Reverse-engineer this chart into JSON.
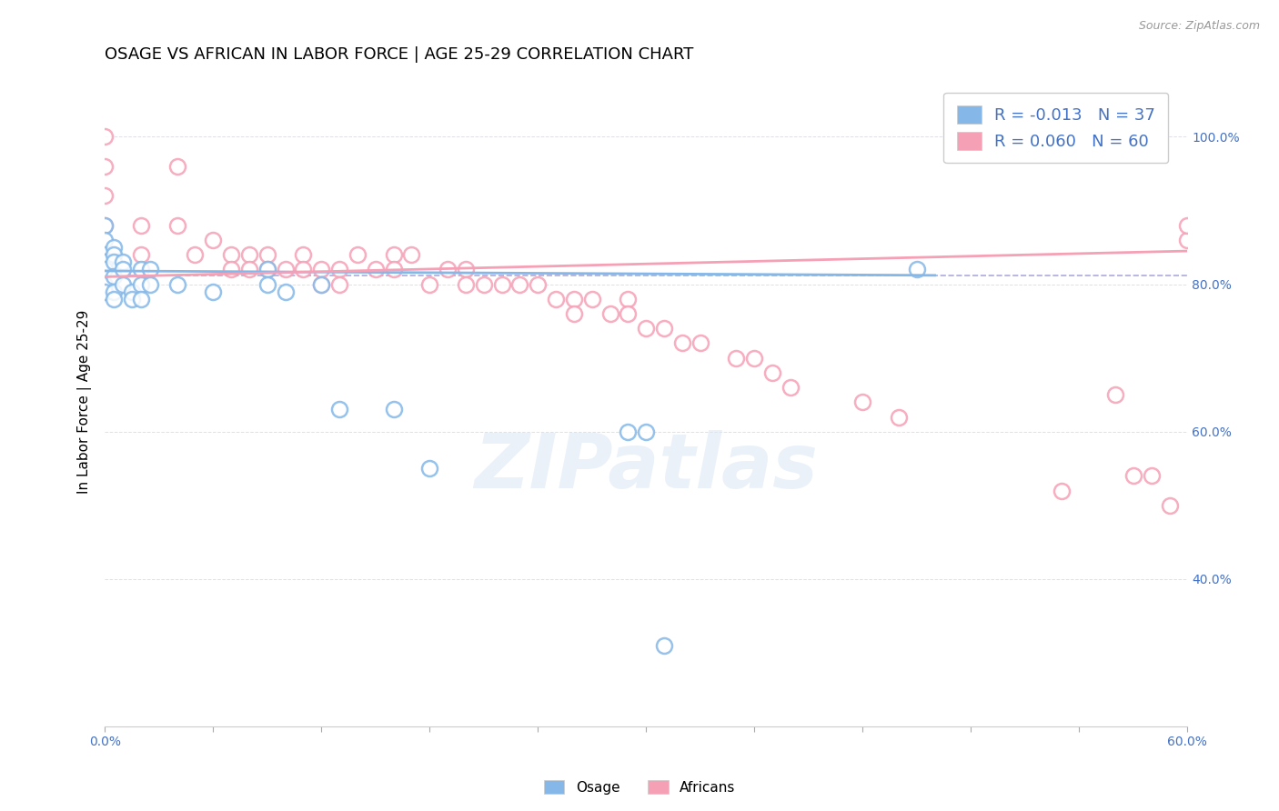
{
  "title": "OSAGE VS AFRICAN IN LABOR FORCE | AGE 25-29 CORRELATION CHART",
  "source_text": "Source: ZipAtlas.com",
  "ylabel": "In Labor Force | Age 25-29",
  "xlim": [
    0.0,
    0.6
  ],
  "ylim": [
    0.2,
    1.08
  ],
  "xticks": [
    0.0,
    0.06,
    0.12,
    0.18,
    0.24,
    0.3,
    0.36,
    0.42,
    0.48,
    0.54,
    0.6
  ],
  "xtick_labels": [
    "0.0%",
    "",
    "",
    "",
    "",
    "",
    "",
    "",
    "",
    "",
    "60.0%"
  ],
  "osage_R": -0.013,
  "osage_N": 37,
  "african_R": 0.06,
  "african_N": 60,
  "osage_color": "#85b8e8",
  "african_color": "#f5a0b5",
  "osage_points_x": [
    0.0,
    0.0,
    0.0,
    0.0,
    0.0,
    0.0,
    0.0,
    0.0,
    0.005,
    0.005,
    0.005,
    0.005,
    0.005,
    0.005,
    0.01,
    0.01,
    0.01,
    0.015,
    0.015,
    0.02,
    0.02,
    0.02,
    0.025,
    0.025,
    0.04,
    0.06,
    0.09,
    0.09,
    0.1,
    0.12,
    0.13,
    0.16,
    0.18,
    0.45,
    0.3,
    0.29,
    0.31
  ],
  "osage_points_y": [
    0.88,
    0.86,
    0.84,
    0.83,
    0.83,
    0.82,
    0.8,
    0.79,
    0.85,
    0.84,
    0.83,
    0.81,
    0.79,
    0.78,
    0.83,
    0.82,
    0.8,
    0.79,
    0.78,
    0.82,
    0.8,
    0.78,
    0.82,
    0.8,
    0.8,
    0.79,
    0.82,
    0.8,
    0.79,
    0.8,
    0.63,
    0.63,
    0.55,
    0.82,
    0.6,
    0.6,
    0.31
  ],
  "african_points_x": [
    0.0,
    0.0,
    0.0,
    0.0,
    0.02,
    0.02,
    0.04,
    0.04,
    0.05,
    0.06,
    0.07,
    0.07,
    0.08,
    0.08,
    0.09,
    0.09,
    0.1,
    0.11,
    0.11,
    0.12,
    0.12,
    0.13,
    0.13,
    0.14,
    0.15,
    0.16,
    0.16,
    0.17,
    0.18,
    0.19,
    0.2,
    0.2,
    0.21,
    0.22,
    0.23,
    0.24,
    0.25,
    0.26,
    0.26,
    0.27,
    0.28,
    0.29,
    0.29,
    0.3,
    0.31,
    0.32,
    0.33,
    0.35,
    0.36,
    0.37,
    0.38,
    0.42,
    0.44,
    0.53,
    0.56,
    0.57,
    0.59,
    0.6,
    0.58,
    0.6
  ],
  "african_points_y": [
    1.0,
    0.96,
    0.92,
    0.88,
    0.88,
    0.84,
    0.96,
    0.88,
    0.84,
    0.86,
    0.84,
    0.82,
    0.84,
    0.82,
    0.84,
    0.82,
    0.82,
    0.84,
    0.82,
    0.82,
    0.8,
    0.82,
    0.8,
    0.84,
    0.82,
    0.84,
    0.82,
    0.84,
    0.8,
    0.82,
    0.82,
    0.8,
    0.8,
    0.8,
    0.8,
    0.8,
    0.78,
    0.78,
    0.76,
    0.78,
    0.76,
    0.78,
    0.76,
    0.74,
    0.74,
    0.72,
    0.72,
    0.7,
    0.7,
    0.68,
    0.66,
    0.64,
    0.62,
    0.52,
    0.65,
    0.54,
    0.5,
    0.86,
    0.54,
    0.88
  ],
  "osage_trend_x": [
    0.0,
    0.46
  ],
  "osage_trend_y": [
    0.818,
    0.812
  ],
  "african_trend_x": [
    0.0,
    0.6
  ],
  "african_trend_y": [
    0.81,
    0.845
  ],
  "hline_y": 0.812,
  "hline_color": "#aaaadd",
  "background_color": "#ffffff",
  "watermark_text": "ZIPatlas",
  "title_fontsize": 13,
  "axis_label_fontsize": 11,
  "tick_fontsize": 10,
  "legend_fontsize": 13
}
